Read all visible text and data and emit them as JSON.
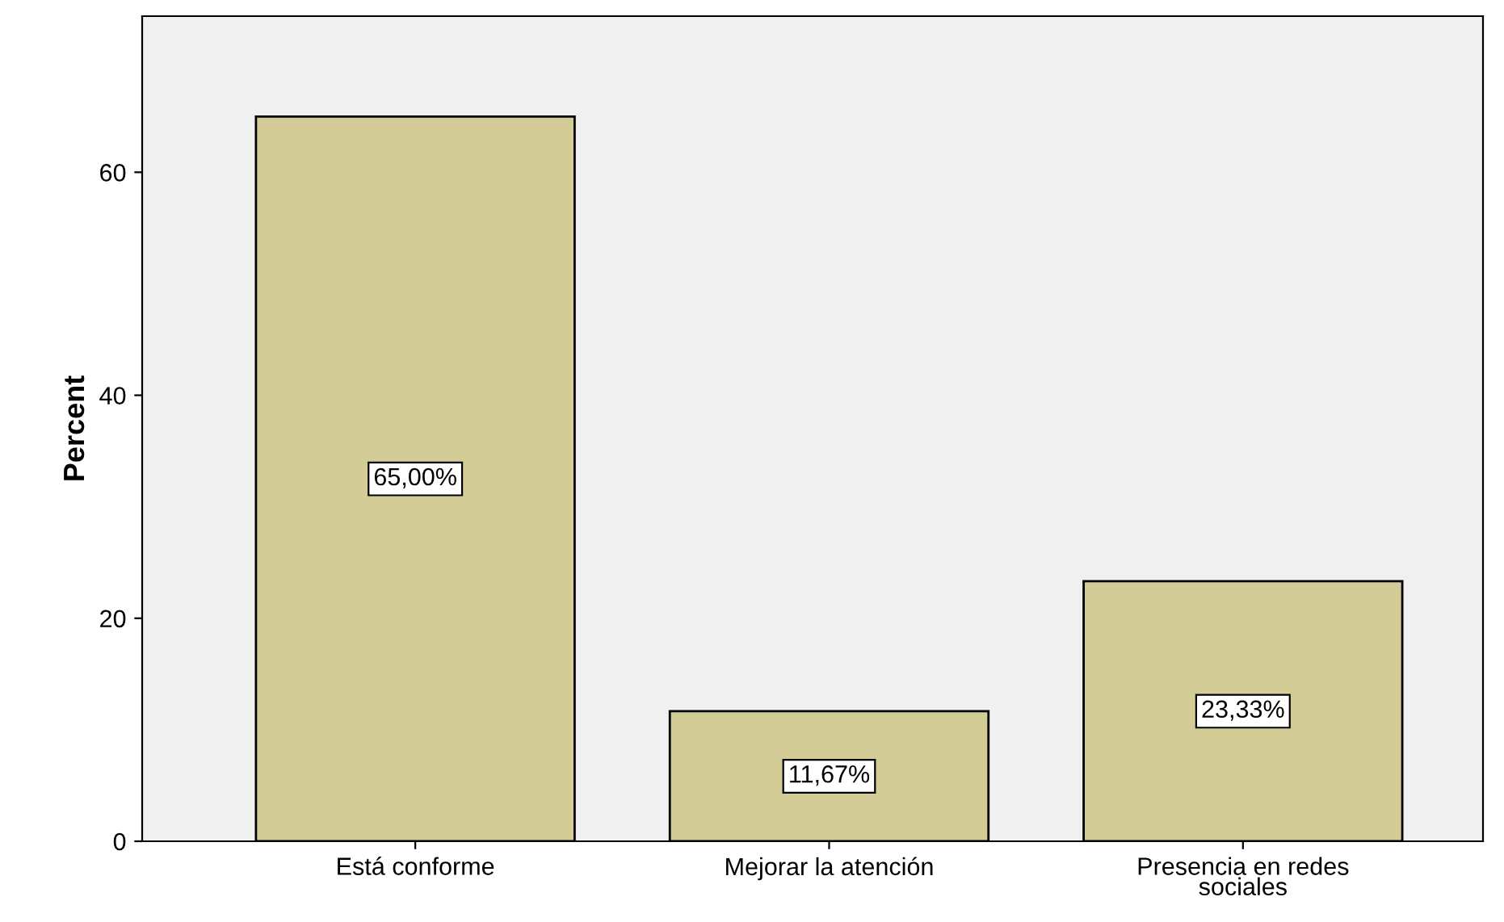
{
  "chart_data": {
    "type": "bar",
    "ylabel": "Percent",
    "categories": [
      "Está conforme",
      "Mejorar la atención",
      "Presencia en redes sociales"
    ],
    "values": [
      65.0,
      11.67,
      23.33
    ],
    "value_labels": [
      "65,00%",
      "11,67%",
      "23,33%"
    ],
    "color": "#d3cc96",
    "ylim": [
      0,
      74
    ],
    "yticks": [
      0,
      20,
      40,
      60
    ],
    "grid": false
  }
}
